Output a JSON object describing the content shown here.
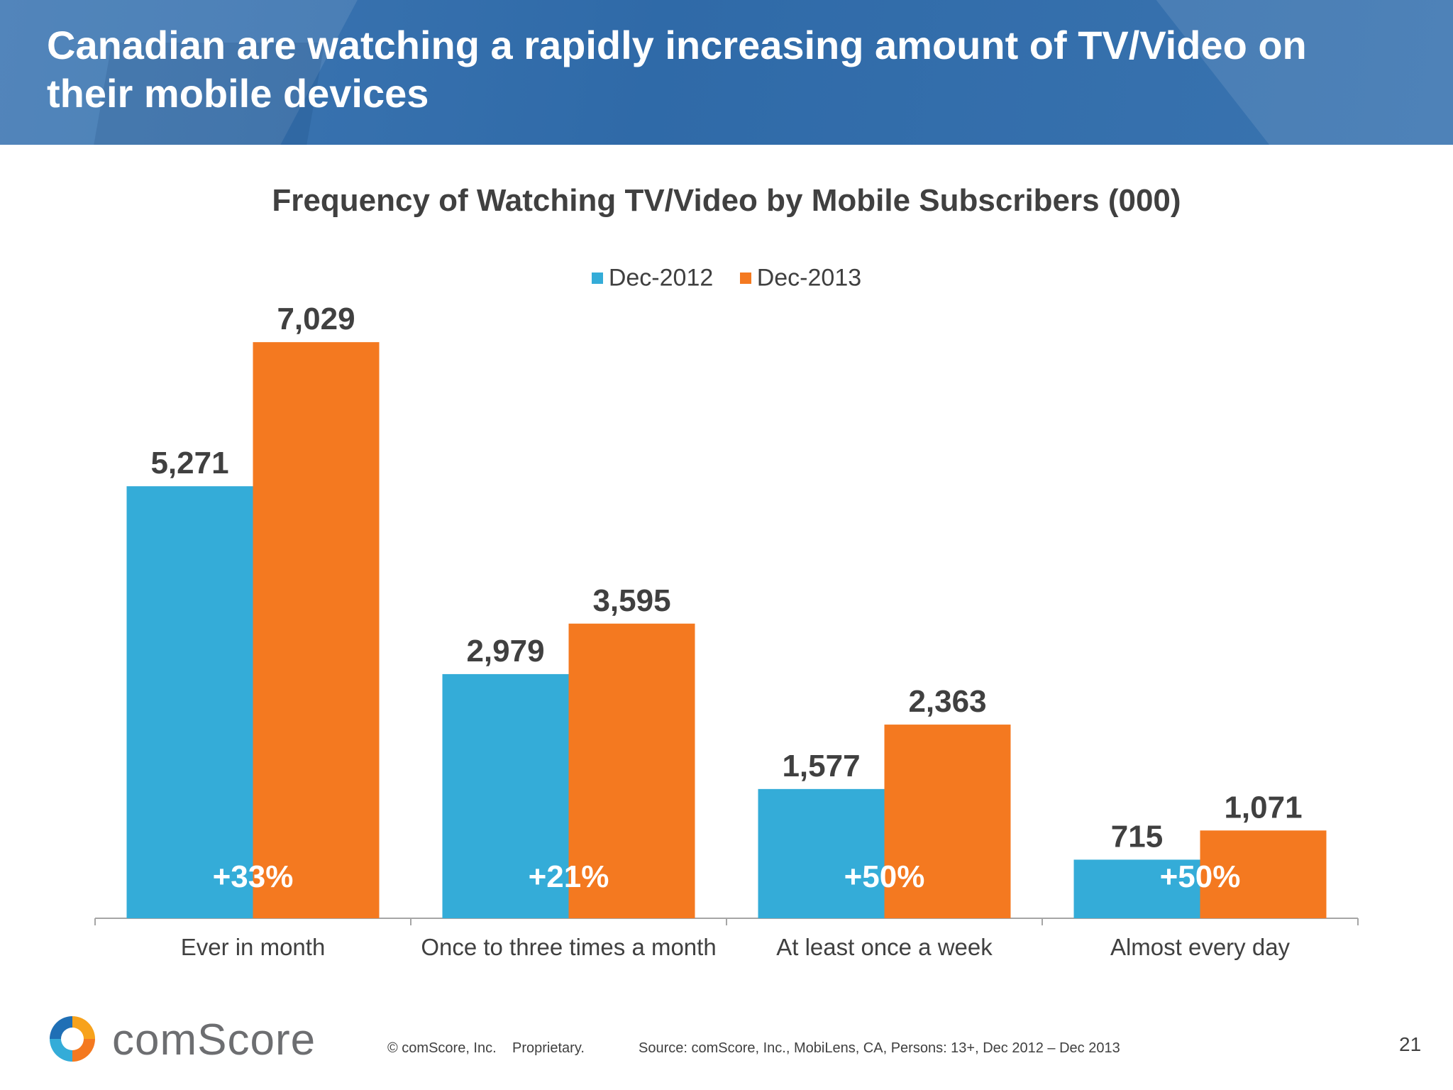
{
  "slide": {
    "title": "Canadian are watching a rapidly increasing amount of TV/Video on their mobile devices"
  },
  "chart_data": {
    "type": "bar",
    "title": "Frequency of Watching TV/Video by Mobile Subscribers (000)",
    "categories": [
      "Ever in month",
      "Once to three times a month",
      "At least once a week",
      "Almost every day"
    ],
    "series": [
      {
        "name": "Dec-2012",
        "values": [
          5271,
          2979,
          1577,
          715
        ],
        "labels": [
          "5,271",
          "2,979",
          "1,577",
          "715"
        ],
        "color": "#34acd8"
      },
      {
        "name": "Dec-2013",
        "values": [
          7029,
          3595,
          2363,
          1071
        ],
        "labels": [
          "7,029",
          "3,595",
          "2,363",
          "1,071"
        ],
        "color": "#f47920"
      }
    ],
    "growth_labels": [
      "+33%",
      "+21%",
      "+50%",
      "+50%"
    ],
    "ylim": [
      0,
      8000
    ],
    "grid": false,
    "legend_position": "top-center"
  },
  "footer": {
    "brand": "comScore",
    "copyright": "© comScore, Inc.",
    "proprietary": "Proprietary.",
    "source": "Source: comScore, Inc., MobiLens, CA, Persons: 13+, Dec 2012 – Dec 2013",
    "page_number": "21"
  }
}
